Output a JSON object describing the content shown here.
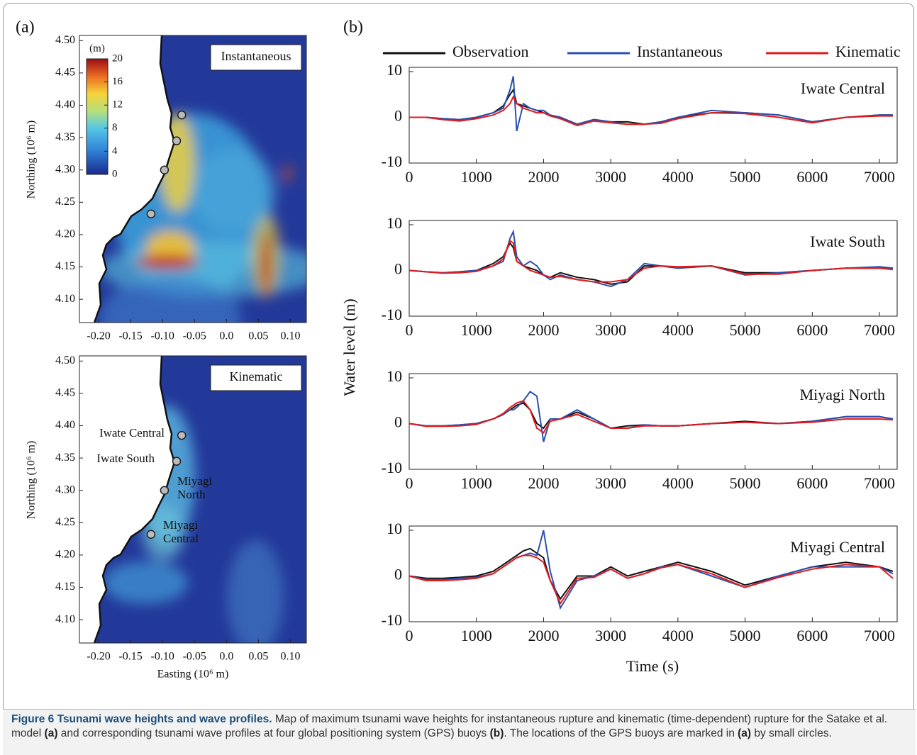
{
  "panel_labels": [
    "(a)",
    "(b)"
  ],
  "maps": {
    "xlim": [
      -0.23,
      0.125
    ],
    "ylim": [
      4.064,
      4.508
    ],
    "xticks": [
      {
        "value": -0.2,
        "label": "-0.20"
      },
      -0.15,
      {
        "value": -0.1,
        "label": "-0.10"
      },
      -0.05,
      {
        "value": 0,
        "label": "0.0"
      },
      0.05,
      {
        "value": 0.1,
        "label": "0.10"
      }
    ],
    "yticks": [
      {
        "value": 4.1,
        "label": "4.10"
      },
      4.15,
      {
        "value": 4.2,
        "label": "4.20"
      },
      4.25,
      {
        "value": 4.3,
        "label": "4.30"
      },
      4.35,
      {
        "value": 4.4,
        "label": "4.40"
      },
      4.45,
      {
        "value": 4.5,
        "label": "4.50"
      }
    ],
    "xlabel": "Easting (10⁶ m)",
    "ylabel": "Northing (10⁶ m)",
    "colorbar": {
      "unit": "(m)",
      "lim": [
        0,
        20
      ],
      "ticks": [
        0,
        4,
        8,
        12,
        16,
        20
      ]
    },
    "buoys": [
      {
        "name": [
          "Iwate Central"
        ],
        "x": -0.07,
        "y": 4.385
      },
      {
        "name": [
          "Iwate South"
        ],
        "x": -0.078,
        "y": 4.345
      },
      {
        "name": [
          "Miyagi",
          "North"
        ],
        "x": -0.097,
        "y": 4.3
      },
      {
        "name": [
          "Miyagi",
          "Central"
        ],
        "x": -0.118,
        "y": 4.232
      }
    ],
    "panels": [
      {
        "title": "Instantaneous"
      },
      {
        "title": "Kinematic"
      }
    ]
  },
  "profiles": {
    "ylabel": "Water level (m)",
    "xlabel": "Time (s)",
    "xlim": [
      0,
      7200
    ],
    "xticks": [
      0,
      1000,
      2000,
      3000,
      4000,
      5000,
      6000,
      7000
    ],
    "ylim": [
      -10,
      10
    ],
    "yticks": [
      -10,
      0,
      10
    ],
    "legend": [
      {
        "name": "Observation",
        "color": "#111111"
      },
      {
        "name": "Instantaneous",
        "color": "#2a4fb0"
      },
      {
        "name": "Kinematic",
        "color": "#e3191c"
      }
    ],
    "x": [
      0,
      250,
      500,
      750,
      1000,
      1250,
      1400,
      1500,
      1550,
      1600,
      1700,
      1800,
      1900,
      2000,
      2100,
      2250,
      2500,
      2750,
      3000,
      3250,
      3500,
      3750,
      4000,
      4500,
      5000,
      5500,
      6000,
      6500,
      7000,
      7200
    ],
    "panels": [
      {
        "title": "Iwate Central",
        "series": [
          [
            0,
            0,
            -0.3,
            -0.5,
            0,
            1,
            2.5,
            5,
            6,
            3,
            2.5,
            2,
            1.5,
            1,
            0.5,
            0,
            -1.5,
            -0.5,
            -1,
            -1,
            -1.5,
            -1,
            0,
            1,
            1,
            0.5,
            -1,
            0,
            0.5,
            0.5
          ],
          [
            0,
            0,
            -0.3,
            -0.5,
            0,
            1,
            2,
            6,
            9,
            -3,
            3,
            2,
            1.5,
            1.5,
            0.5,
            0,
            -1.5,
            -0.5,
            -1,
            -1.5,
            -1.5,
            -1,
            0,
            1.5,
            1,
            0.5,
            -1,
            0,
            0.5,
            0.5
          ],
          [
            0,
            0,
            -0.5,
            -0.8,
            -0.3,
            0.5,
            1.5,
            3,
            4.5,
            3,
            2,
            1.5,
            1,
            1,
            0.3,
            -0.3,
            -1.8,
            -0.8,
            -1.2,
            -1.5,
            -1.5,
            -1.3,
            -0.3,
            1,
            0.8,
            0,
            -1.2,
            0,
            0.3,
            0.3
          ]
        ]
      },
      {
        "title": "Iwate South",
        "series": [
          [
            0,
            -0.3,
            -0.5,
            -0.3,
            0,
            1.5,
            3,
            6,
            5,
            2,
            1,
            0.5,
            0,
            -1,
            -1.5,
            -0.5,
            -1.5,
            -2,
            -3,
            -2.5,
            1,
            1,
            0.5,
            1,
            -0.5,
            -0.5,
            0,
            0.5,
            0.5,
            0.5
          ],
          [
            0,
            -0.3,
            -0.5,
            -0.3,
            0,
            1,
            2,
            7,
            8.5,
            3,
            1,
            2,
            1,
            -1,
            -2,
            -1,
            -2,
            -2.5,
            -3.5,
            -2,
            1.5,
            1,
            0.5,
            1,
            -1,
            -0.5,
            0,
            0.5,
            0.8,
            0.5
          ],
          [
            0,
            -0.3,
            -0.6,
            -0.5,
            -0.2,
            1,
            2.5,
            6.5,
            6,
            2,
            1,
            0,
            -0.5,
            -1,
            -1.5,
            -1.3,
            -2,
            -2.5,
            -2.5,
            -2,
            0.5,
            1,
            0.8,
            1,
            -0.8,
            -0.8,
            0,
            0.5,
            0.5,
            0.2
          ]
        ]
      },
      {
        "title": "Miyagi North",
        "series": [
          [
            0,
            -0.5,
            -0.5,
            -0.3,
            0,
            1,
            2,
            3,
            3.5,
            4,
            4.5,
            3,
            0,
            -1,
            1,
            1,
            2.5,
            1,
            -1,
            -0.5,
            -0.3,
            -0.5,
            -0.5,
            0,
            0.5,
            0,
            0.5,
            1.5,
            1.5,
            1
          ],
          [
            0,
            -0.5,
            -0.5,
            -0.3,
            0,
            1,
            2,
            3,
            3,
            3.5,
            5,
            7,
            6,
            -4,
            1,
            1,
            3,
            1,
            -1,
            -1,
            -0.3,
            -0.5,
            -0.5,
            0,
            0.3,
            0,
            0.5,
            1.5,
            1.5,
            1
          ],
          [
            0,
            -0.6,
            -0.6,
            -0.5,
            -0.2,
            1,
            2.2,
            3.5,
            4,
            4.5,
            5,
            3,
            -1,
            -2,
            0.5,
            1,
            2,
            0.5,
            -1,
            -1,
            -0.5,
            -0.5,
            -0.5,
            0,
            0.3,
            0,
            0.3,
            1,
            1,
            0.8
          ]
        ]
      },
      {
        "title": "Miyagi Central",
        "series": [
          [
            0,
            -0.5,
            -0.5,
            -0.3,
            0,
            1,
            2.5,
            3.5,
            4,
            4.5,
            5.5,
            6,
            5,
            4,
            -1,
            -5,
            0,
            0,
            2,
            0,
            1,
            2,
            3,
            1,
            -2,
            0,
            2,
            3,
            2,
            1
          ],
          [
            0,
            -0.8,
            -0.8,
            -0.5,
            -0.3,
            0.5,
            2,
            3,
            3.5,
            4,
            4.5,
            5,
            4.5,
            10,
            1,
            -7,
            -1,
            0,
            1.5,
            -0.5,
            0.5,
            2,
            2.5,
            0,
            -2.5,
            0,
            2,
            2,
            2,
            0.5
          ],
          [
            0,
            -1,
            -1,
            -0.8,
            -0.5,
            0.5,
            2,
            3,
            3.5,
            4,
            4.5,
            4.5,
            4,
            3,
            -1,
            -6,
            -0.5,
            -0.3,
            1.5,
            -0.5,
            0.5,
            1.8,
            2.5,
            0.5,
            -2.5,
            -0.3,
            1.5,
            2.5,
            2,
            -0.5
          ]
        ]
      }
    ]
  },
  "caption": {
    "title": "Figure 6 Tsunami wave heights and wave profiles.",
    "text1": "Map of maximum tsunami wave heights for instantaneous rupture and kinematic (time-dependent) rupture for the Satake et al. model",
    "ref1": "(a)",
    "text2": "and corresponding tsunami wave profiles at four global positioning system (GPS) buoys",
    "ref2": "(b)",
    "text3": ". The locations of the GPS buoys are marked in",
    "ref3": "(a)",
    "text4": "by small circles."
  }
}
